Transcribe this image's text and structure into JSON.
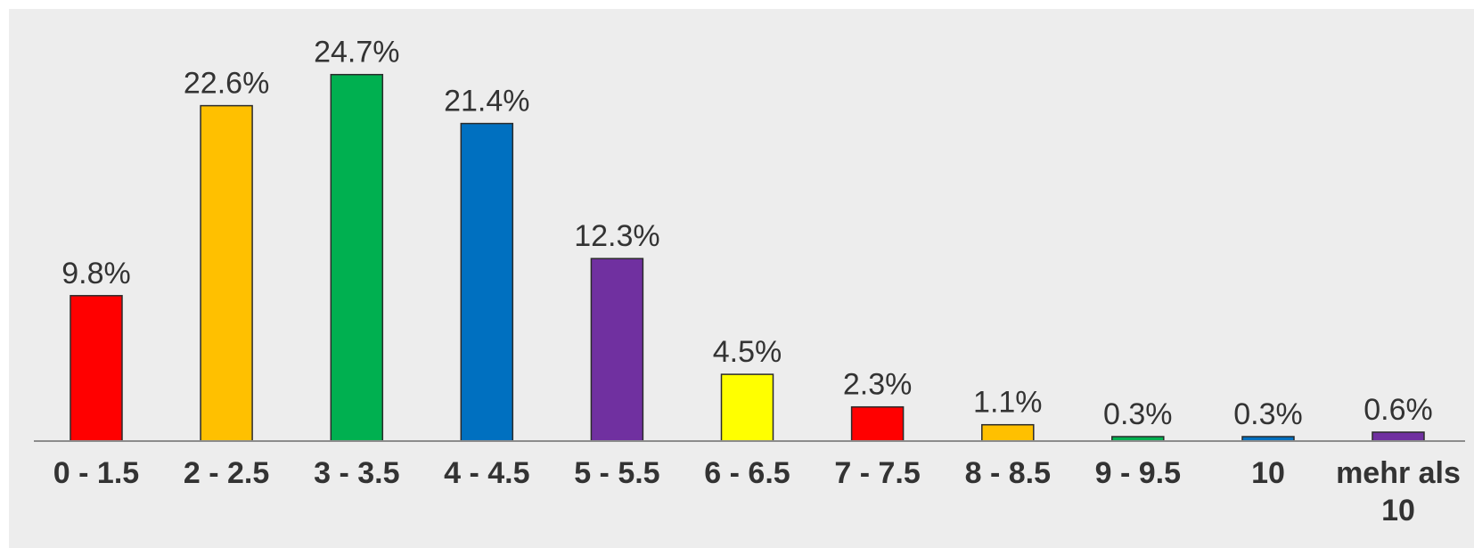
{
  "chart_data": {
    "type": "bar",
    "title": "",
    "xlabel": "",
    "ylabel": "",
    "ylim": [
      0,
      26
    ],
    "grid": false,
    "legend": "none",
    "categories": [
      "0 - 1.5",
      "2 - 2.5",
      "3 - 3.5",
      "4 - 4.5",
      "5 - 5.5",
      "6 - 6.5",
      "7 - 7.5",
      "8 - 8.5",
      "9 - 9.5",
      "10",
      "mehr als 10"
    ],
    "values": [
      9.8,
      22.6,
      24.7,
      21.4,
      12.3,
      4.5,
      2.3,
      1.1,
      0.3,
      0.3,
      0.6
    ],
    "labels": [
      "9.8%",
      "22.6%",
      "24.7%",
      "21.4%",
      "12.3%",
      "4.5%",
      "2.3%",
      "1.1%",
      "0.3%",
      "0.3%",
      "0.6%"
    ],
    "colors": [
      "#ff0000",
      "#ffc000",
      "#00b050",
      "#0070c0",
      "#7030a0",
      "#ffff00",
      "#ff0000",
      "#ffc000",
      "#00b050",
      "#0070c0",
      "#7030a0"
    ]
  }
}
